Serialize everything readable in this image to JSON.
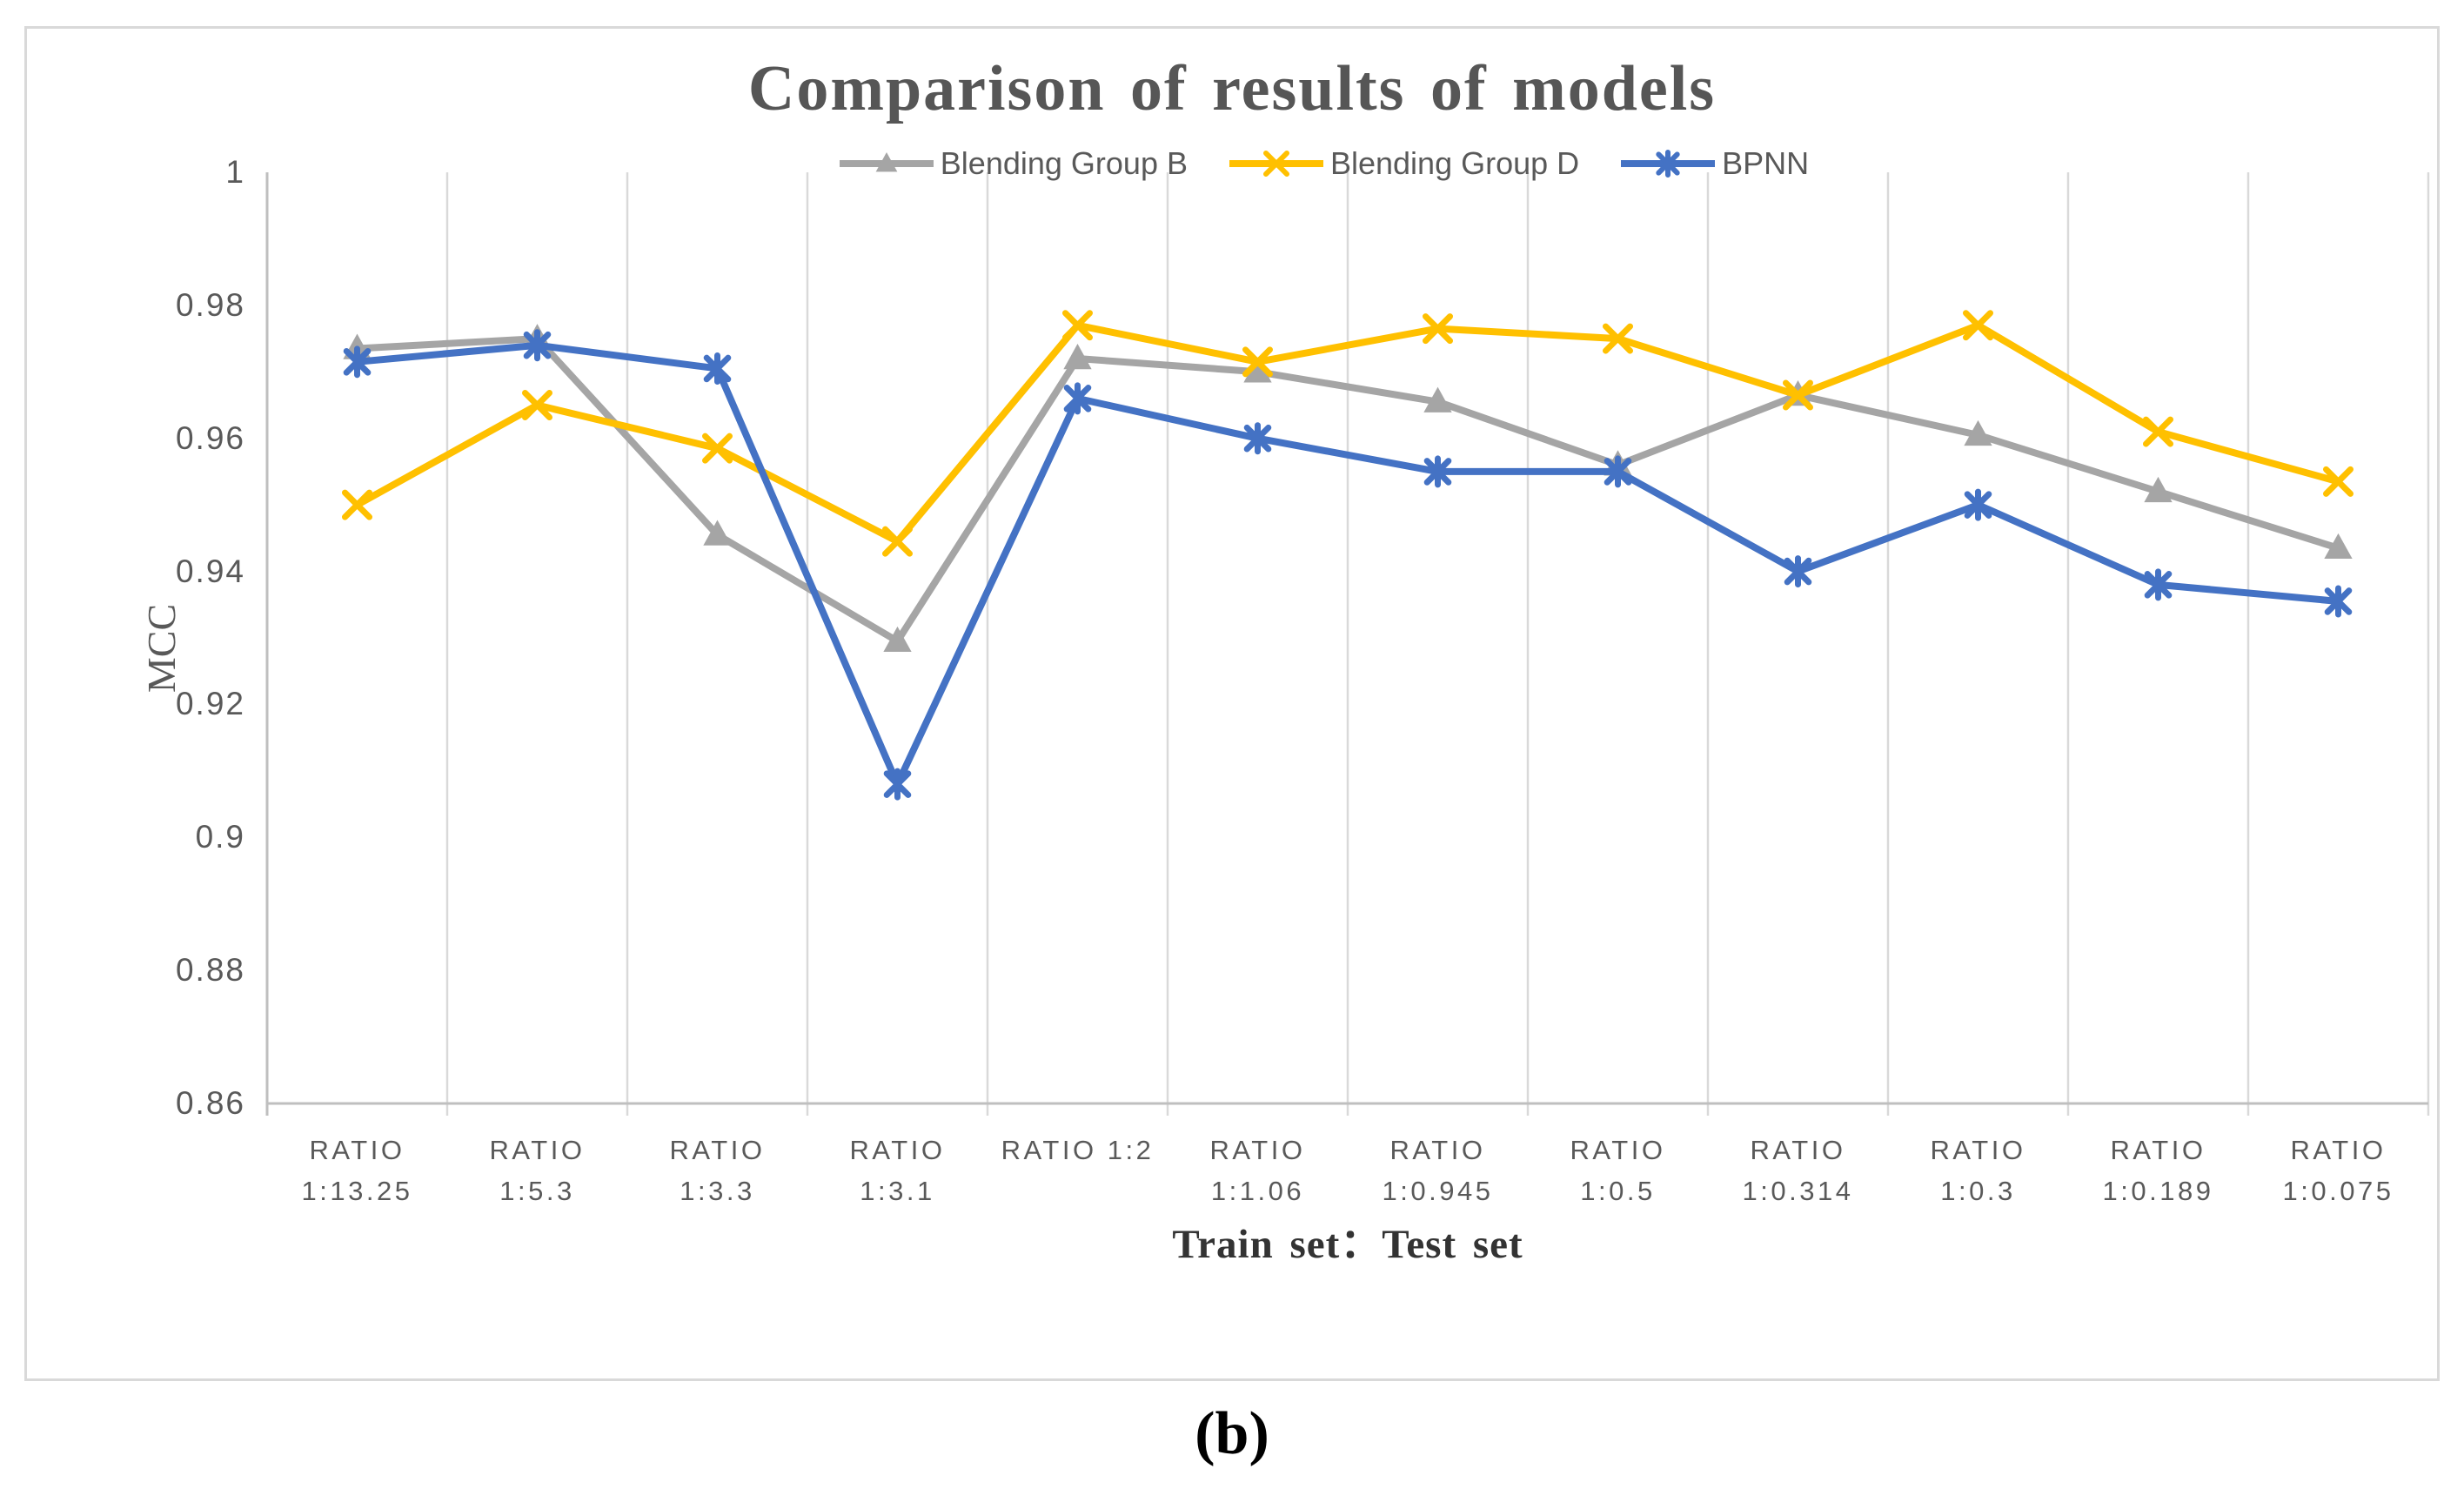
{
  "figure": {
    "caption": "(b)"
  },
  "chart_data": {
    "type": "line",
    "title": "Comparison of results of models",
    "xlabel": "Train set：Test set",
    "ylabel": "MCC",
    "ylim": [
      0.86,
      1.0
    ],
    "ytick_step": 0.02,
    "yticks": [
      "1",
      "0.98",
      "0.96",
      "0.94",
      "0.92",
      "0.9",
      "0.88",
      "0.86"
    ],
    "grid": "vertical-only",
    "legend_position": "top-center-inside",
    "categories": [
      "RATIO 1:13.25",
      "RATIO 1:5.3",
      "RATIO 1:3.3",
      "RATIO 1:3.1",
      "RATIO 1:2",
      "RATIO 1:1.06",
      "RATIO 1:0.945",
      "RATIO 1:0.5",
      "RATIO 1:0.314",
      "RATIO 1:0.3",
      "RATIO 1:0.189",
      "RATIO 1:0.075"
    ],
    "category_labels": [
      [
        "RATIO",
        "1:13.25"
      ],
      [
        "RATIO",
        "1:5.3"
      ],
      [
        "RATIO",
        "1:3.3"
      ],
      [
        "RATIO",
        "1:3.1"
      ],
      [
        "RATIO 1:2"
      ],
      [
        "RATIO",
        "1:1.06"
      ],
      [
        "RATIO",
        "1:0.945"
      ],
      [
        "RATIO",
        "1:0.5"
      ],
      [
        "RATIO",
        "1:0.314"
      ],
      [
        "RATIO",
        "1:0.3"
      ],
      [
        "RATIO",
        "1:0.189"
      ],
      [
        "RATIO",
        "1:0.075"
      ]
    ],
    "series": [
      {
        "name": "Blending Group B",
        "color": "#a5a5a5",
        "marker": "triangle",
        "values": [
          0.9735,
          0.975,
          0.9455,
          0.9295,
          0.972,
          0.97,
          0.9655,
          0.956,
          0.9665,
          0.9605,
          0.952,
          0.9435
        ]
      },
      {
        "name": "Blending Group D",
        "color": "#ffc000",
        "marker": "x",
        "values": [
          0.95,
          0.965,
          0.9585,
          0.9445,
          0.977,
          0.9715,
          0.9765,
          0.975,
          0.9665,
          0.977,
          0.961,
          0.9535
        ]
      },
      {
        "name": "BPNN",
        "color": "#4472c4",
        "marker": "asterisk",
        "values": [
          0.9715,
          0.974,
          0.9705,
          0.908,
          0.966,
          0.96,
          0.955,
          0.955,
          0.94,
          0.95,
          0.938,
          0.9355
        ]
      }
    ],
    "colors": {
      "gridline": "#d9d9d9",
      "axis_line": "#bfbfbf",
      "tick_text": "#595959",
      "title_text": "#565656",
      "axis_title_text": "#333333",
      "caption_text": "#000000"
    }
  }
}
